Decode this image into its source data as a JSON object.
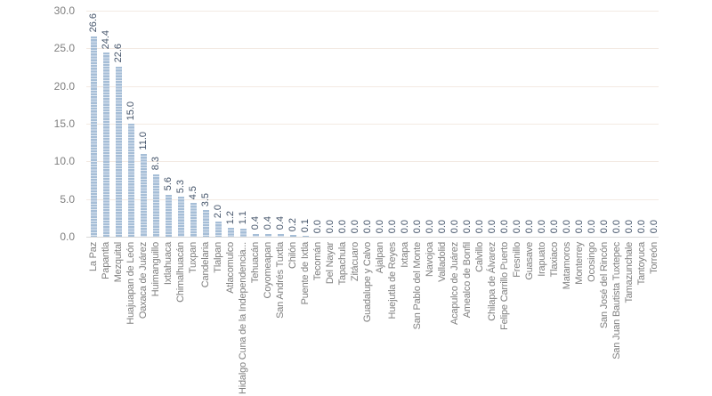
{
  "chart_data": {
    "type": "bar",
    "title": "",
    "xlabel": "",
    "ylabel": "",
    "ylim": [
      0,
      30
    ],
    "ytick_values": [
      30,
      25,
      20,
      15,
      10,
      5,
      0
    ],
    "ytick_labels": [
      "30.0",
      "25.0",
      "20.0",
      "15.0",
      "10.0",
      "5.0",
      "0.0"
    ],
    "grid": true,
    "legend": "none",
    "value_label_decimals": 1,
    "categories": [
      "La Paz",
      "Papantla",
      "Mezquital",
      "Huajuapan de León",
      "Oaxaca de Juárez",
      "Huimanguillo",
      "Ixtlahuaca",
      "Chimalhuacán",
      "Tuxpan",
      "Candelaria",
      "Tlalpan",
      "Atlacomulco",
      "Hidalgo Cuna de la Independencia...",
      "Tehuacán",
      "Coyomeapan",
      "San Andrés Tuxtla",
      "Chilón",
      "Puente de Ixtla",
      "Tecomán",
      "Del Nayar",
      "Tapachula",
      "Zitácuaro",
      "Guadalupe y Calvo",
      "Ajalpan",
      "Huejutla de Reyes",
      "Ixtapa",
      "San Pablo del Monte",
      "Navojoa",
      "Valladolid",
      "Acapulco de Juárez",
      "Amealco de Bonfil",
      "Calvillo",
      "Chilapa de Álvarez",
      "Felipe Carrillo Puerto",
      "Fresnillo",
      "Guasave",
      "Irapuato",
      "Tlaxiaco",
      "Matamoros",
      "Monterrey",
      "Ocosingo",
      "San José del Rincón",
      "San Juan Bautista Tuxtepec",
      "Tamazunchale",
      "Tantoyuca",
      "Torreón"
    ],
    "values": [
      26.6,
      24.4,
      22.6,
      15.0,
      11.0,
      8.3,
      5.6,
      5.3,
      4.5,
      3.5,
      2.0,
      1.2,
      1.1,
      0.4,
      0.4,
      0.4,
      0.2,
      0.1,
      0.0,
      0.0,
      0.0,
      0.0,
      0.0,
      0.0,
      0.0,
      0.0,
      0.0,
      0.0,
      0.0,
      0.0,
      0.0,
      0.0,
      0.0,
      0.0,
      0.0,
      0.0,
      0.0,
      0.0,
      0.0,
      0.0,
      0.0,
      0.0,
      0.0,
      0.0,
      0.0,
      0.0
    ],
    "colors": {
      "bar_fill": "#a6bed7",
      "bar_stripe": "#dde6f0",
      "data_label": "#44546a",
      "axis_label": "#7f7f7f",
      "gridline": "#f3eae3",
      "axis_line": "#d8d8d8",
      "background": "#ffffff"
    }
  }
}
